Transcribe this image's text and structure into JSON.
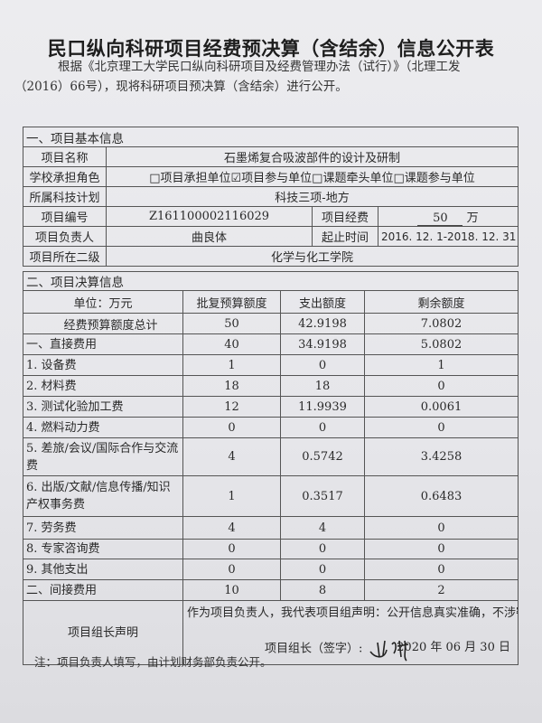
{
  "title": "民口纵向科研项目经费预决算（含结余）信息公开表",
  "intro": {
    "line1": "根据《北京理工大学民口纵向科研项目及经费管理办法（试行）》（北理工发",
    "line2": "（2016）66号），现将科研项目预决算（含结余）进行公开。"
  },
  "basic_info": {
    "section_title": "一、项目基本信息",
    "project_name_label": "项目名称",
    "project_name": "石墨烯复合吸波部件的设计及研制",
    "role_label": "学校承担角色",
    "role_options": [
      {
        "label": "项目承担单位",
        "checked": false
      },
      {
        "label": "项目参与单位",
        "checked": true
      },
      {
        "label": "课题牵头单位",
        "checked": false
      },
      {
        "label": "课题参与单位",
        "checked": false
      }
    ],
    "plan_label": "所属科技计划",
    "plan": "科技三项-地方",
    "number_label": "项目编号",
    "number": "Z161100002116029",
    "funding_label": "项目经费",
    "funding_value": "50",
    "funding_unit": "万",
    "leader_label": "项目负责人",
    "leader": "曲良体",
    "period_label": "起止时间",
    "period": "2016. 12. 1-2018. 12. 31",
    "dept_label": "项目所在二级",
    "dept": "化学与化工学院"
  },
  "budget": {
    "section_title": "二、项目决算信息",
    "headers": [
      "单位：万元",
      "批复预算额度",
      "支出额度",
      "剩余额度"
    ],
    "rows": [
      {
        "item": "经费预算额度总计",
        "approved": "50",
        "spent": "42.9198",
        "remaining": "7.0802"
      },
      {
        "item": "一、直接费用",
        "approved": "40",
        "spent": "34.9198",
        "remaining": "5.0802"
      },
      {
        "item": "1. 设备费",
        "approved": "1",
        "spent": "0",
        "remaining": "1"
      },
      {
        "item": "2. 材料费",
        "approved": "18",
        "spent": "18",
        "remaining": "0"
      },
      {
        "item": "3. 测试化验加工费",
        "approved": "12",
        "spent": "11.9939",
        "remaining": "0.0061"
      },
      {
        "item": "4. 燃料动力费",
        "approved": "0",
        "spent": "0",
        "remaining": "0"
      },
      {
        "item": "5. 差旅/会议/国际合作与交流费",
        "approved": "4",
        "spent": "0.5742",
        "remaining": "3.4258"
      },
      {
        "item": "6. 出版/文献/信息传播/知识产权事务费",
        "approved": "1",
        "spent": "0.3517",
        "remaining": "0.6483"
      },
      {
        "item": "7. 劳务费",
        "approved": "4",
        "spent": "4",
        "remaining": "0"
      },
      {
        "item": "8. 专家咨询费",
        "approved": "0",
        "spent": "0",
        "remaining": "0"
      },
      {
        "item": "9. 其他支出",
        "approved": "0",
        "spent": "0",
        "remaining": "0"
      },
      {
        "item": "二、间接费用",
        "approved": "10",
        "spent": "8",
        "remaining": "2"
      }
    ]
  },
  "declaration": {
    "label": "项目组长声明",
    "statement": "作为项目负责人，我代表项目组声明：公开信息真实准确，不涉密。",
    "signature_label": "项目组长（签字）:",
    "signature": "曲良体",
    "date": "2020 年 06 月 30 日"
  },
  "note": "注：项目负责人填写，由计划财务部负责公开。"
}
